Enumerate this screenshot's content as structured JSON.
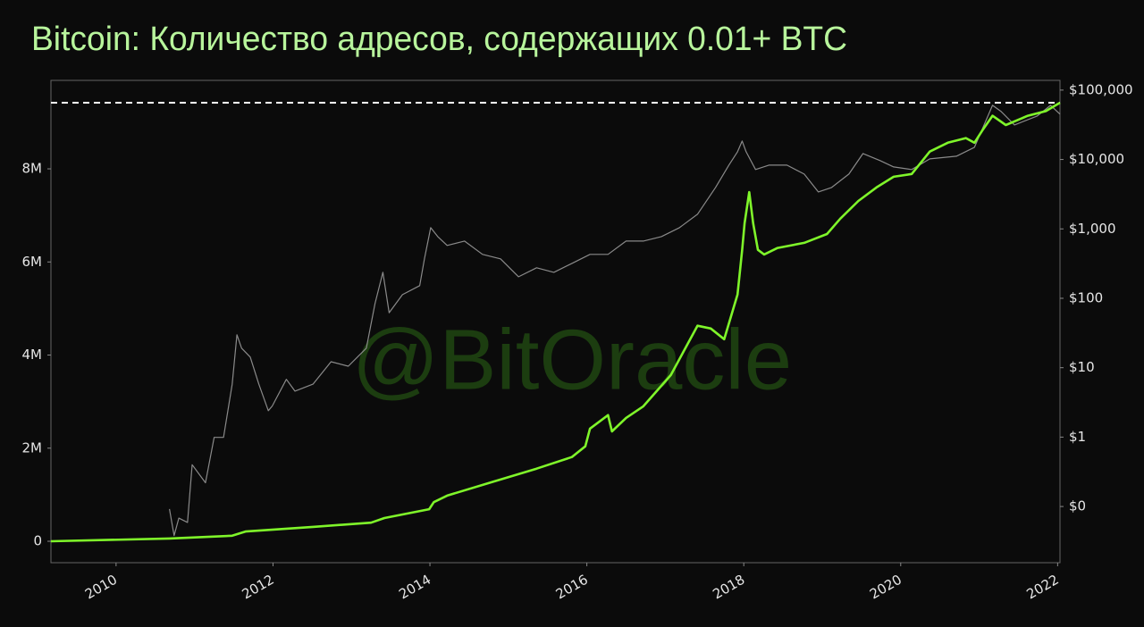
{
  "chart_data": {
    "type": "line",
    "title": "Bitcoin: Количество адресов, содержащих 0.01+ BTC",
    "watermark": "@BitOracle",
    "xlim": [
      2009.17,
      2022.03
    ],
    "xticks": [
      2010,
      2012,
      2014,
      2016,
      2018,
      2020,
      2022
    ],
    "ylim": [
      -460000,
      9900000
    ],
    "yticks": [
      {
        "value": 0,
        "label": "0"
      },
      {
        "value": 2000000,
        "label": "2M"
      },
      {
        "value": 4000000,
        "label": "4M"
      },
      {
        "value": 6000000,
        "label": "6M"
      },
      {
        "value": 8000000,
        "label": "8M"
      }
    ],
    "y2lim": [
      0.0155,
      138000
    ],
    "y2log": true,
    "y2ticks": [
      {
        "value": 0.1,
        "label": "$0"
      },
      {
        "value": 1,
        "label": "$1"
      },
      {
        "value": 10,
        "label": "$10"
      },
      {
        "value": 100,
        "label": "$100"
      },
      {
        "value": 1000,
        "label": "$1,000"
      },
      {
        "value": 10000,
        "label": "$10,000"
      },
      {
        "value": 100000,
        "label": "$100,000"
      }
    ],
    "hline": 9420000,
    "hline_color": "#ffffff",
    "series": [
      {
        "color": "#8a8a8a",
        "axis": "y2",
        "x": [
          2010.68,
          2010.74,
          2010.8,
          2010.91,
          2010.97,
          2011.14,
          2011.25,
          2011.37,
          2011.48,
          2011.54,
          2011.6,
          2011.71,
          2011.82,
          2011.94,
          2011.99,
          2012.17,
          2012.28,
          2012.51,
          2012.74,
          2012.96,
          2013.19,
          2013.3,
          2013.4,
          2013.48,
          2013.65,
          2013.87,
          2013.93,
          2014.01,
          2014.1,
          2014.22,
          2014.44,
          2014.67,
          2014.9,
          2015.13,
          2015.36,
          2015.58,
          2015.81,
          2016.04,
          2016.27,
          2016.5,
          2016.72,
          2016.95,
          2017.18,
          2017.41,
          2017.64,
          2017.81,
          2017.92,
          2017.98,
          2018.03,
          2018.15,
          2018.32,
          2018.55,
          2018.77,
          2018.95,
          2019.12,
          2019.34,
          2019.52,
          2019.74,
          2019.91,
          2020.14,
          2020.37,
          2020.71,
          2020.94,
          2021.17,
          2021.28,
          2021.45,
          2021.74,
          2021.91,
          2022.03
        ],
        "values": [
          0.092,
          0.038,
          0.068,
          0.059,
          0.4,
          0.22,
          0.99,
          0.99,
          5.8,
          29.8,
          19.1,
          14.2,
          5.8,
          2.4,
          2.8,
          6.8,
          4.6,
          5.8,
          12.2,
          10.5,
          19.1,
          84,
          237,
          62,
          113,
          152,
          370,
          1043,
          775,
          577,
          668,
          429,
          370,
          204,
          275,
          237,
          318,
          429,
          429,
          668,
          668,
          775,
          1043,
          1626,
          3955,
          8300,
          12940,
          18460,
          12940,
          7160,
          8300,
          8300,
          6170,
          3410,
          3955,
          6170,
          12190,
          9620,
          7820,
          7160,
          10210,
          11160,
          15000,
          60390,
          49090,
          31480,
          42360,
          60390,
          44970
        ]
      },
      {
        "color": "#7ff52a",
        "axis": "y",
        "x": [
          2009.17,
          2010.68,
          2011.48,
          2011.65,
          2012.51,
          2013.25,
          2013.42,
          2013.99,
          2014.05,
          2014.22,
          2014.79,
          2015.36,
          2015.81,
          2015.98,
          2016.04,
          2016.27,
          2016.32,
          2016.5,
          2016.72,
          2017.07,
          2017.41,
          2017.58,
          2017.75,
          2017.92,
          2017.98,
          2018.01,
          2018.07,
          2018.12,
          2018.18,
          2018.26,
          2018.43,
          2018.77,
          2019.06,
          2019.23,
          2019.46,
          2019.69,
          2019.91,
          2020.14,
          2020.37,
          2020.6,
          2020.83,
          2020.94,
          2021.05,
          2021.17,
          2021.34,
          2021.62,
          2021.85,
          2022.03
        ],
        "values": [
          0,
          60000,
          120000,
          210000,
          310000,
          400000,
          500000,
          690000,
          840000,
          980000,
          1270000,
          1560000,
          1810000,
          2040000,
          2420000,
          2710000,
          2360000,
          2650000,
          2900000,
          3570000,
          4630000,
          4570000,
          4340000,
          5300000,
          6260000,
          6830000,
          7500000,
          6830000,
          6260000,
          6160000,
          6300000,
          6410000,
          6600000,
          6930000,
          7310000,
          7600000,
          7830000,
          7890000,
          8370000,
          8560000,
          8660000,
          8560000,
          8850000,
          9140000,
          8940000,
          9140000,
          9240000,
          9420000
        ]
      }
    ]
  }
}
